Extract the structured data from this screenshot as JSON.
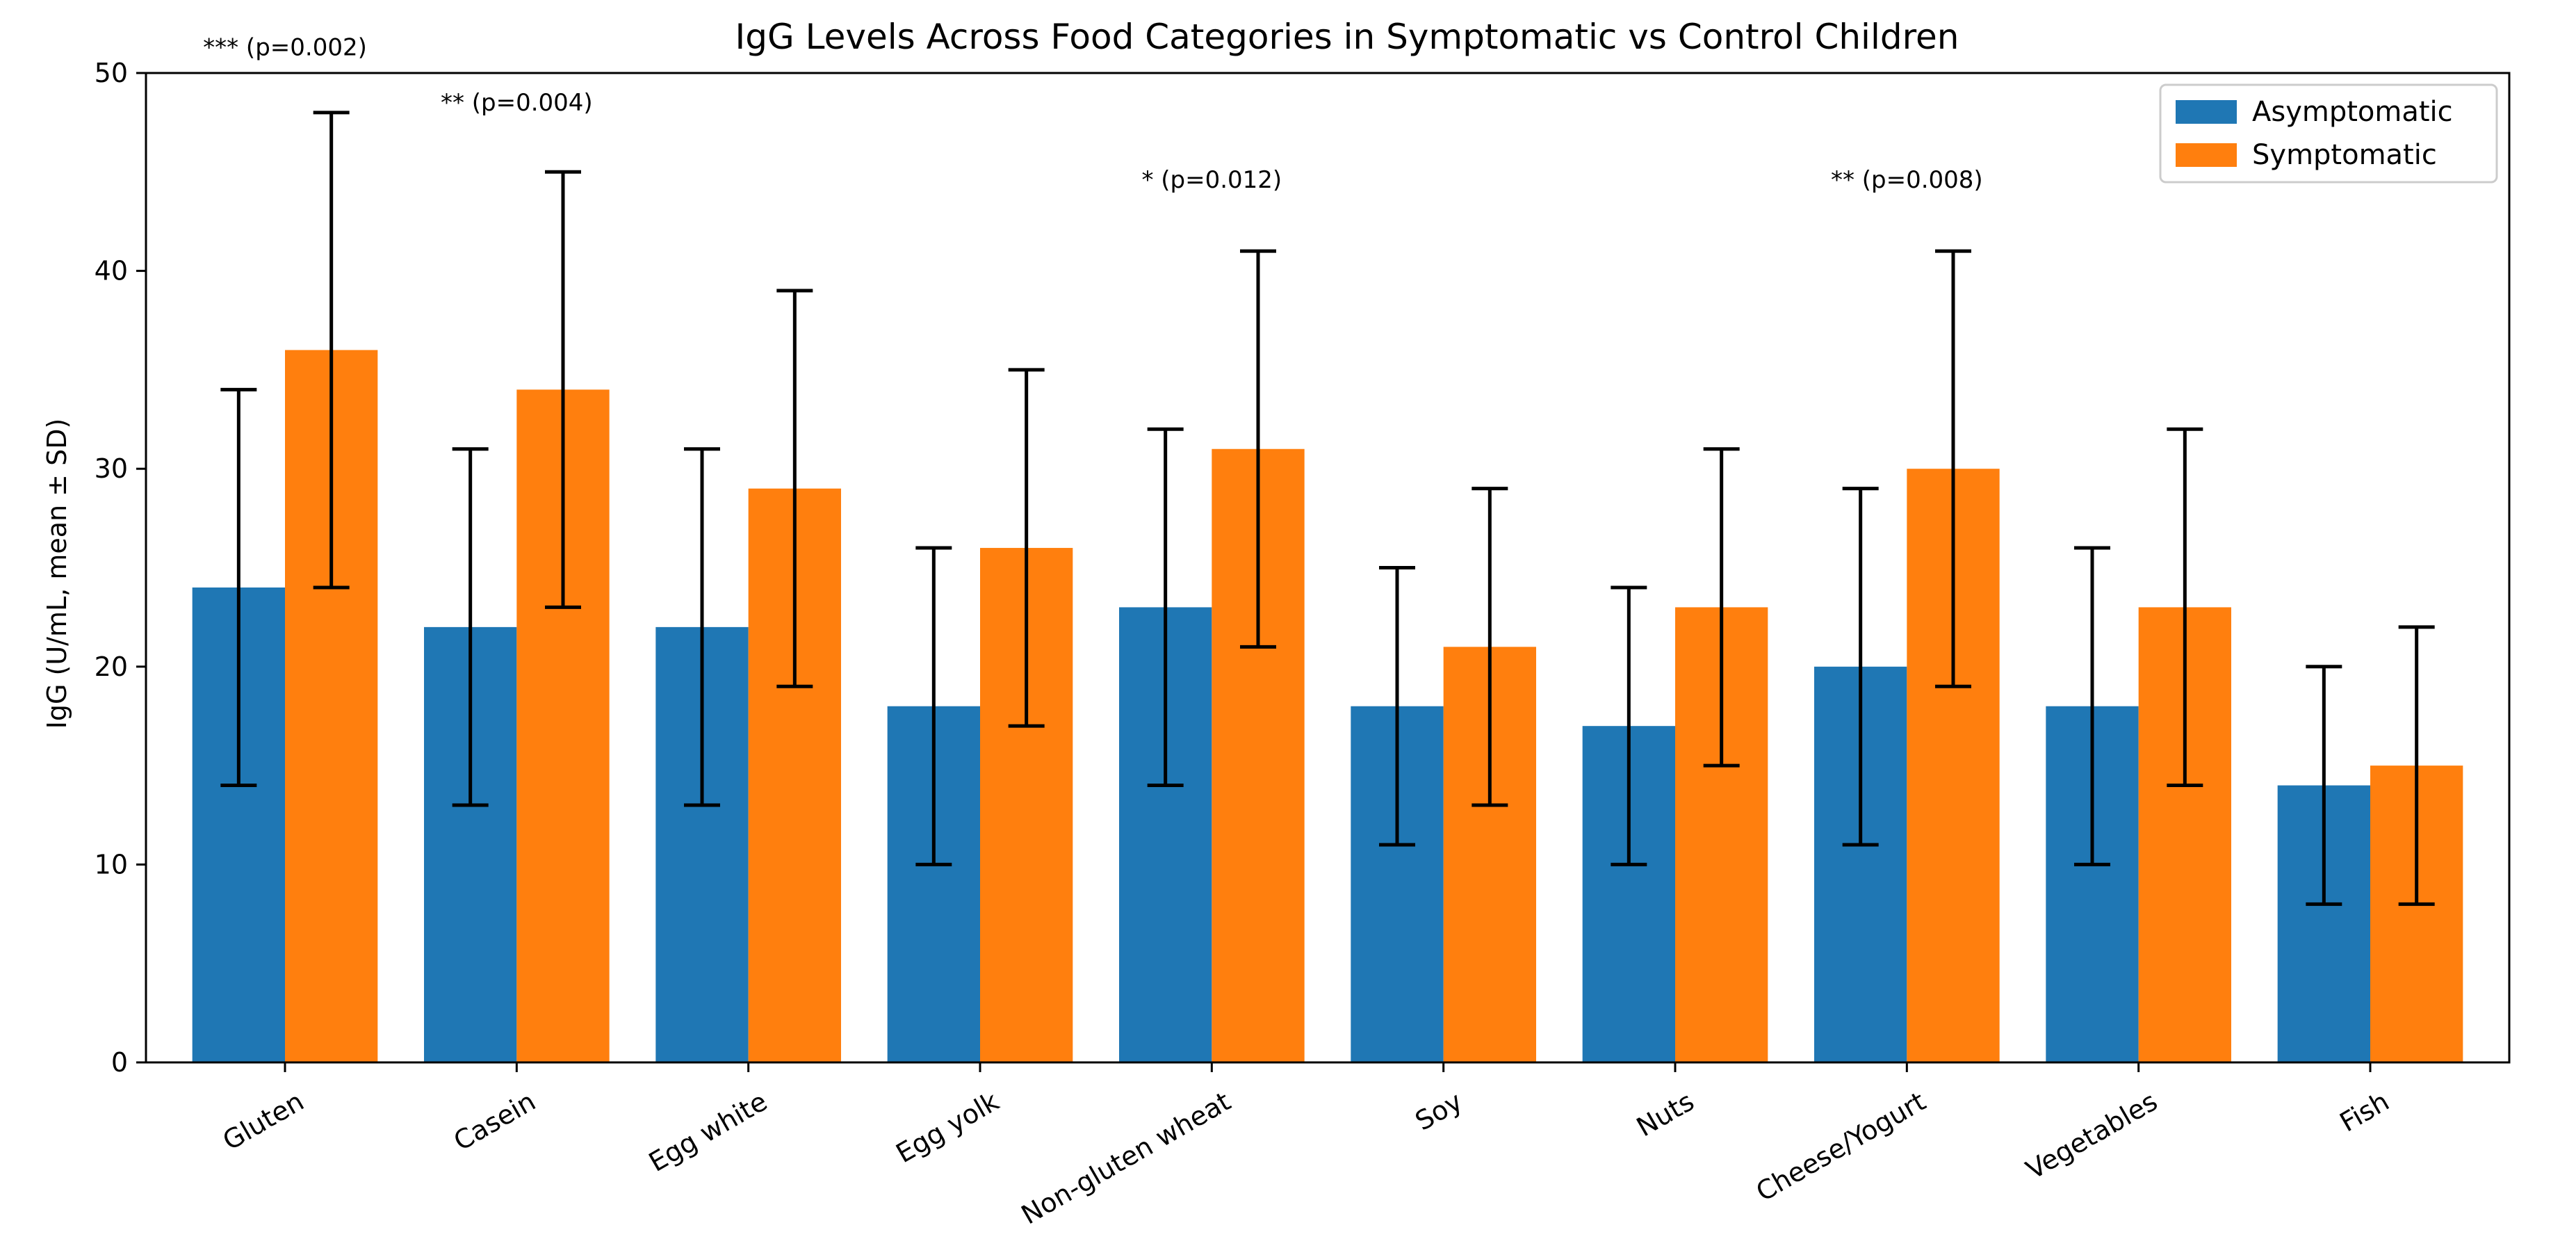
{
  "chart_data": {
    "type": "bar",
    "title": "IgG Levels Across Food Categories in Symptomatic vs Control Children",
    "xlabel": "",
    "ylabel": "IgG (U/mL, mean ± SD)",
    "ylim": [
      0,
      50
    ],
    "yticks": [
      0,
      10,
      20,
      30,
      40,
      50
    ],
    "categories": [
      "Gluten",
      "Casein",
      "Egg white",
      "Egg yolk",
      "Non-gluten wheat",
      "Soy",
      "Nuts",
      "Cheese/Yogurt",
      "Vegetables",
      "Fish"
    ],
    "series": [
      {
        "name": "Asymptomatic",
        "color": "#1f77b4",
        "values": [
          24,
          22,
          22,
          18,
          23,
          18,
          17,
          20,
          18,
          14
        ],
        "sd": [
          10,
          9,
          9,
          8,
          9,
          7,
          7,
          9,
          8,
          6
        ]
      },
      {
        "name": "Symptomatic",
        "color": "#ff7f0e",
        "values": [
          36,
          34,
          29,
          26,
          31,
          21,
          23,
          30,
          23,
          15
        ],
        "sd": [
          12,
          11,
          10,
          9,
          10,
          8,
          8,
          11,
          9,
          7
        ]
      }
    ],
    "annotations": [
      {
        "category_index": 0,
        "text": "*** (p=0.002)",
        "y": 50.9
      },
      {
        "category_index": 1,
        "text": "** (p=0.004)",
        "y": 48.1
      },
      {
        "category_index": 4,
        "text": "* (p=0.012)",
        "y": 44.2
      },
      {
        "category_index": 7,
        "text": "** (p=0.008)",
        "y": 44.2
      }
    ],
    "legend": {
      "position": "top-right"
    },
    "grid": false
  }
}
